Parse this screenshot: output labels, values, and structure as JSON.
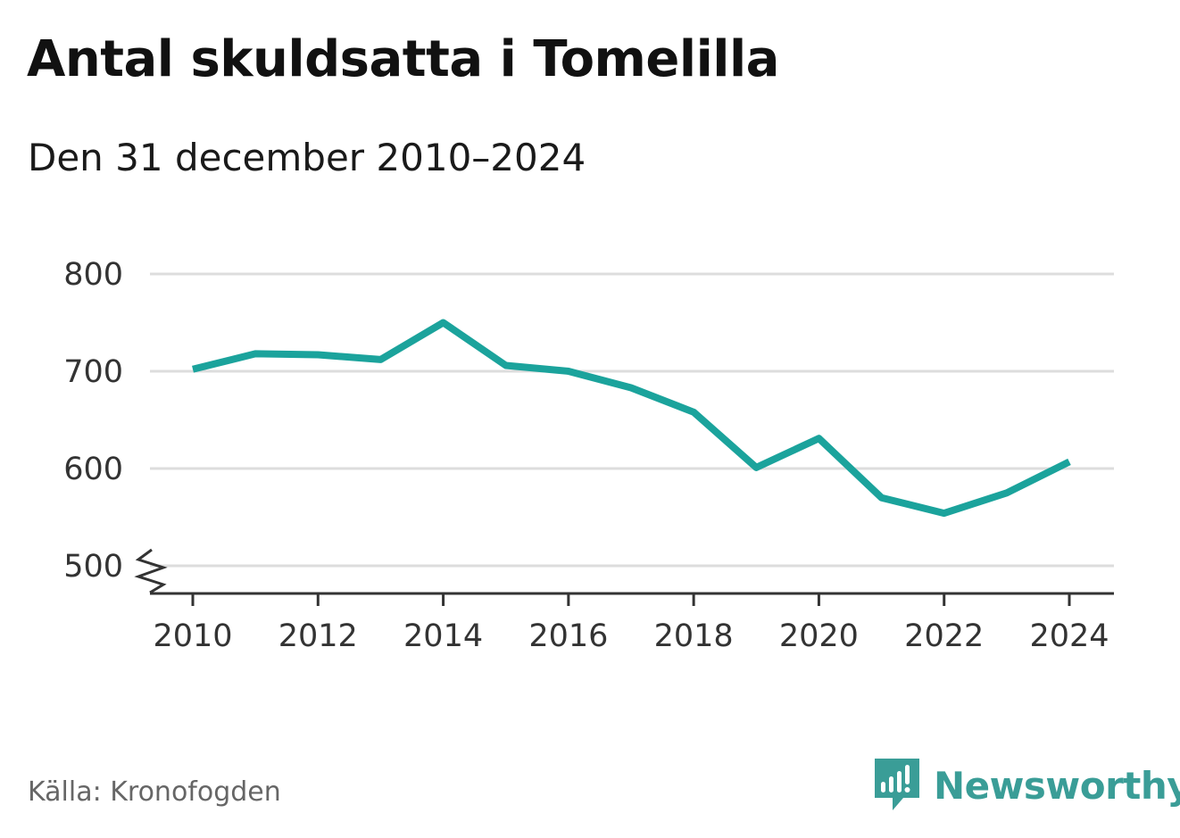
{
  "title": "Antal skuldsatta i Tomelilla",
  "subtitle": "Den 31 december 2010–2024",
  "source": "Källa: Kronofogden",
  "brand": {
    "name": "Newsworthy",
    "icon": "bar-chart-speech-bubble-icon",
    "color": "#3a9d97"
  },
  "chart_data": {
    "type": "line",
    "x": [
      2010,
      2011,
      2012,
      2013,
      2014,
      2015,
      2016,
      2017,
      2018,
      2019,
      2020,
      2021,
      2022,
      2023,
      2024
    ],
    "series": [
      {
        "values": [
          702,
          718,
          717,
          712,
          750,
          706,
          700,
          683,
          658,
          601,
          631,
          570,
          554,
          575,
          607
        ],
        "color": "#1ba39c"
      }
    ],
    "xticks": [
      "2010",
      "2012",
      "2014",
      "2016",
      "2018",
      "2020",
      "2022",
      "2024"
    ],
    "yticks": [
      "500",
      "600",
      "700",
      "800"
    ],
    "ylim": [
      500,
      800
    ],
    "xlim": [
      2010,
      2024
    ],
    "axis_break": true,
    "grid": true,
    "gridline_color": "#dddddd",
    "axis_color": "#333333"
  }
}
